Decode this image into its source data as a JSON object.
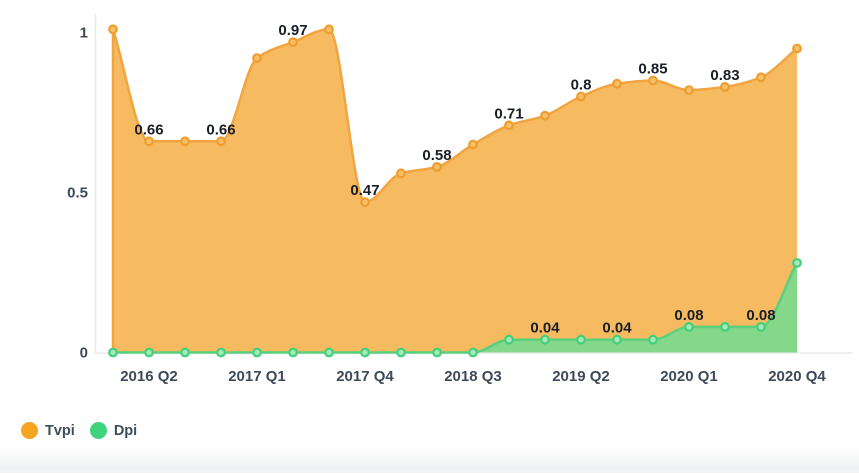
{
  "chart_data": {
    "type": "area",
    "title": "",
    "xlabel": "",
    "ylabel": "",
    "grid": "off",
    "legend_position": "bottom-left",
    "x": [
      "2016 Q1",
      "2016 Q2",
      "2016 Q3",
      "2016 Q4",
      "2017 Q1",
      "2017 Q2",
      "2017 Q3",
      "2017 Q4",
      "2018 Q1",
      "2018 Q2",
      "2018 Q3",
      "2018 Q4",
      "2019 Q1",
      "2019 Q2",
      "2019 Q3",
      "2019 Q4",
      "2020 Q1",
      "2020 Q2",
      "2020 Q3",
      "2020 Q4"
    ],
    "x_tick_indices": [
      1,
      4,
      7,
      10,
      13,
      16,
      19
    ],
    "x_tick_labels": [
      "2016 Q2",
      "2017 Q1",
      "2017 Q4",
      "2018 Q3",
      "2019 Q2",
      "2020 Q1",
      "2020 Q4"
    ],
    "y_tick_values": [
      0,
      0.5,
      1
    ],
    "y_tick_labels": [
      "0",
      "0.5",
      "1"
    ],
    "ylim": [
      0,
      1.05
    ],
    "series": [
      {
        "name": "Tvpi",
        "values": [
          1.01,
          0.66,
          0.66,
          0.66,
          0.92,
          0.97,
          1.01,
          0.47,
          0.56,
          0.58,
          0.65,
          0.71,
          0.74,
          0.8,
          0.84,
          0.85,
          0.82,
          0.83,
          0.86,
          0.95
        ],
        "point_labels": {
          "1": "0.66",
          "3": "0.66",
          "5": "0.97",
          "7": "0.47",
          "9": "0.58",
          "11": "0.71",
          "13": "0.8",
          "15": "0.85",
          "17": "0.83"
        },
        "line_color": "#f2a440",
        "fill_color": "#f6ba61",
        "marker_stroke": "#ee9d31",
        "marker_fill": "#f7c066"
      },
      {
        "name": "Dpi",
        "values": [
          0,
          0,
          0,
          0,
          0,
          0,
          0,
          0,
          0,
          0,
          0,
          0.04,
          0.04,
          0.04,
          0.04,
          0.04,
          0.08,
          0.08,
          0.08,
          0.28
        ],
        "point_labels": {
          "12": "0.04",
          "14": "0.04",
          "16": "0.08",
          "18": "0.08"
        },
        "line_color": "#5ad07e",
        "fill_color": "#85d78a",
        "marker_stroke": "#43d07a",
        "marker_fill": "#a6e8ba"
      }
    ],
    "legend": [
      {
        "label": "Tvpi",
        "color": "#f5a41f"
      },
      {
        "label": "Dpi",
        "color": "#3fd37d"
      }
    ],
    "colors": {
      "data_label": "#1a1f26",
      "axis_label": "#3e4a59",
      "axis_line": "#e8eaee"
    }
  }
}
